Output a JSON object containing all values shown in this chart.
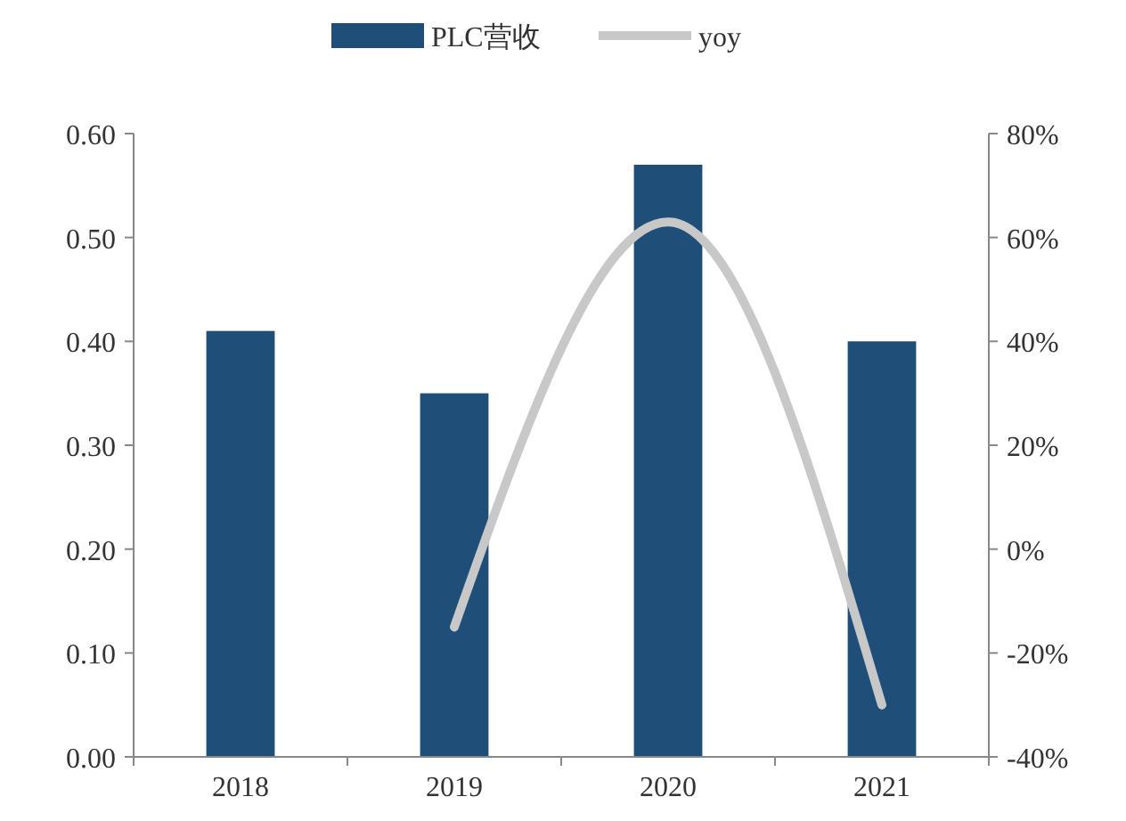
{
  "chart_data": {
    "type": "bar",
    "categories": [
      "2018",
      "2019",
      "2020",
      "2021"
    ],
    "series": [
      {
        "name": "PLC营收",
        "color": "#1f4e79",
        "values": [
          0.41,
          0.35,
          0.57,
          0.4
        ]
      },
      {
        "name": "yoy",
        "type": "line",
        "axis": "y2",
        "color": "#c8c8c8",
        "values": [
          null,
          -15,
          63,
          -30
        ]
      }
    ],
    "ylim": [
      0,
      0.6
    ],
    "yticks": [
      {
        "value": 0,
        "label": "0.00"
      },
      {
        "value": 0.1,
        "label": "0.10"
      },
      {
        "value": 0.2,
        "label": "0.20"
      },
      {
        "value": 0.3,
        "label": "0.30"
      },
      {
        "value": 0.4,
        "label": "0.40"
      },
      {
        "value": 0.5,
        "label": "0.50"
      },
      {
        "value": 0.6,
        "label": "0.60"
      }
    ],
    "y2lim": [
      -40,
      80
    ],
    "y2ticks": [
      {
        "value": -40,
        "label": "-40%"
      },
      {
        "value": -20,
        "label": "-20%"
      },
      {
        "value": 0,
        "label": "0%"
      },
      {
        "value": 20,
        "label": "20%"
      },
      {
        "value": 40,
        "label": "40%"
      },
      {
        "value": 60,
        "label": "60%"
      },
      {
        "value": 80,
        "label": "80%"
      }
    ],
    "legend": "top",
    "grid": false,
    "marker": "none",
    "line_style": "solid"
  }
}
